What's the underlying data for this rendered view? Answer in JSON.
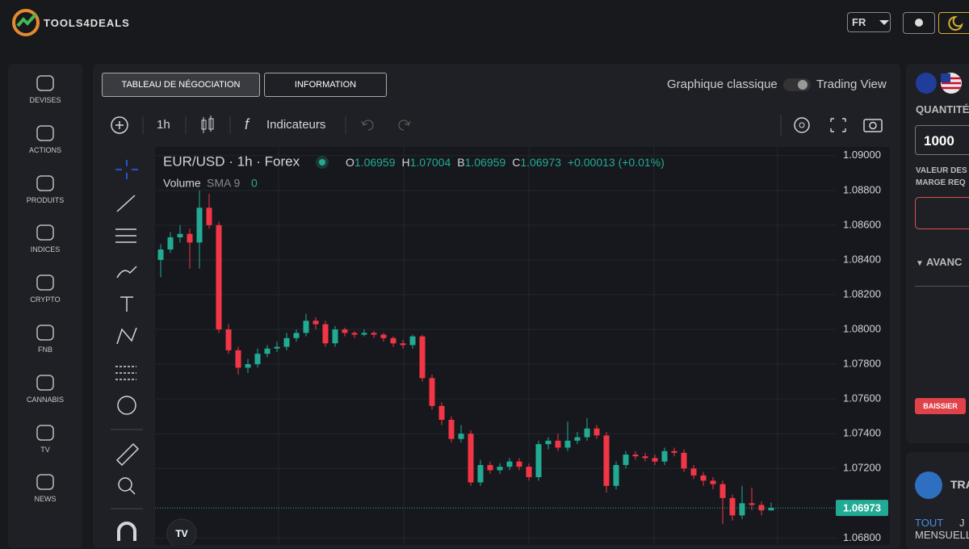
{
  "header": {
    "logo": "TOOLS4DEALS",
    "language": "FR"
  },
  "sidebar": [
    "DEVISES",
    "ACTIONS",
    "PRODUITS",
    "INDICES",
    "CRYPTO",
    "FNB",
    "CANNABIS",
    "TV",
    "NEWS"
  ],
  "tabs": [
    "TABLEAU DE NÉGOCIATION",
    "INFORMATION"
  ],
  "toggle": {
    "left": "Graphique classique",
    "right": "Trading View"
  },
  "toolbar": {
    "interval": "1h",
    "indicators": "Indicateurs"
  },
  "chart_data": {
    "type": "candlestick",
    "title": "EUR/USD · 1h · Forex",
    "legend": [
      {
        "key": "O",
        "value": 1.06959
      },
      {
        "key": "H",
        "value": 1.07004
      },
      {
        "key": "B",
        "value": 1.06959
      },
      {
        "key": "C",
        "value": 1.06973
      }
    ],
    "change": "+0.00013 (+0.01%)",
    "volume": {
      "name": "Volume",
      "indicator": "SMA 9",
      "value": 0
    },
    "up_color": "#22ab94",
    "down_color": "#f23645",
    "open": [
      1.084,
      1.0846,
      1.0853,
      1.0855,
      1.085,
      1.087,
      1.086,
      1.08,
      1.0788,
      1.0778,
      1.078,
      1.0786,
      1.0789,
      1.079,
      1.0795,
      1.0798,
      1.0805,
      1.0803,
      1.0792,
      1.08,
      1.0798,
      1.0797,
      1.0798,
      1.0797,
      1.0795,
      1.0792,
      1.0791,
      1.0796,
      1.0772,
      1.0756,
      1.0748,
      1.0737,
      1.074,
      1.0712,
      1.0722,
      1.0719,
      1.0721,
      1.0724,
      1.0721,
      1.0715,
      1.0734,
      1.0736,
      1.0732,
      1.0736,
      1.0738,
      1.0743,
      1.0739,
      1.071,
      1.0722,
      1.0728,
      1.0727,
      1.0726,
      1.0724,
      1.073,
      1.0729,
      1.072,
      1.0716,
      1.0713,
      1.0711,
      1.0703,
      1.0693,
      1.07,
      1.0699,
      1.06959
    ],
    "high": [
      1.0849,
      1.0856,
      1.086,
      1.0858,
      1.088,
      1.0878,
      1.0862,
      1.0803,
      1.079,
      1.0783,
      1.0789,
      1.0791,
      1.0793,
      1.0798,
      1.08,
      1.0809,
      1.0807,
      1.0805,
      1.0802,
      1.0801,
      1.0799,
      1.08,
      1.0799,
      1.0798,
      1.0796,
      1.0794,
      1.0797,
      1.0797,
      1.0774,
      1.0758,
      1.075,
      1.0745,
      1.0742,
      1.0725,
      1.0724,
      1.0723,
      1.0726,
      1.0726,
      1.0723,
      1.0736,
      1.0738,
      1.074,
      1.0747,
      1.0741,
      1.0749,
      1.0745,
      1.0741,
      1.0724,
      1.073,
      1.073,
      1.0729,
      1.0728,
      1.0732,
      1.0732,
      1.0731,
      1.0722,
      1.0718,
      1.0715,
      1.0713,
      1.0705,
      1.071,
      1.0709,
      1.0701,
      1.07004
    ],
    "low": [
      1.083,
      1.0844,
      1.085,
      1.0835,
      1.0835,
      1.0858,
      1.0798,
      1.0786,
      1.0774,
      1.0775,
      1.0778,
      1.0784,
      1.0787,
      1.0788,
      1.0793,
      1.0796,
      1.08,
      1.079,
      1.079,
      1.0796,
      1.0795,
      1.0796,
      1.0795,
      1.0793,
      1.079,
      1.0789,
      1.0789,
      1.077,
      1.0754,
      1.0745,
      1.0735,
      1.0735,
      1.071,
      1.071,
      1.0717,
      1.0717,
      1.0719,
      1.0719,
      1.0713,
      1.0713,
      1.0731,
      1.073,
      1.073,
      1.0734,
      1.0736,
      1.0737,
      1.0706,
      1.0708,
      1.072,
      1.0725,
      1.0724,
      1.0722,
      1.0722,
      1.0727,
      1.0718,
      1.0714,
      1.071,
      1.0708,
      1.0688,
      1.069,
      1.0691,
      1.0696,
      1.0693,
      1.06959
    ],
    "close": [
      1.0846,
      1.0853,
      1.0855,
      1.085,
      1.087,
      1.086,
      1.08,
      1.0788,
      1.0778,
      1.078,
      1.0786,
      1.0789,
      1.079,
      1.0795,
      1.0798,
      1.0805,
      1.0803,
      1.0792,
      1.08,
      1.0798,
      1.0797,
      1.0798,
      1.0797,
      1.0795,
      1.0792,
      1.0791,
      1.0796,
      1.0772,
      1.0756,
      1.0748,
      1.0737,
      1.074,
      1.0712,
      1.0722,
      1.0719,
      1.0721,
      1.0724,
      1.0721,
      1.0715,
      1.0734,
      1.0736,
      1.0732,
      1.0736,
      1.0738,
      1.0743,
      1.0739,
      1.071,
      1.0722,
      1.0728,
      1.0727,
      1.0726,
      1.0724,
      1.073,
      1.0729,
      1.072,
      1.0716,
      1.0713,
      1.0711,
      1.0703,
      1.0693,
      1.07,
      1.0699,
      1.06959,
      1.06973
    ],
    "ylim": [
      1.0676,
      1.0905
    ],
    "yticks": [
      {
        "value": 1.09,
        "label": "1.09000"
      },
      {
        "value": 1.088,
        "label": "1.08800"
      },
      {
        "value": 1.086,
        "label": "1.08600"
      },
      {
        "value": 1.084,
        "label": "1.08400"
      },
      {
        "value": 1.082,
        "label": "1.08200"
      },
      {
        "value": 1.08,
        "label": "1.08000"
      },
      {
        "value": 1.078,
        "label": "1.07800"
      },
      {
        "value": 1.076,
        "label": "1.07600"
      },
      {
        "value": 1.074,
        "label": "1.07400"
      },
      {
        "value": 1.072,
        "label": "1.07200"
      },
      {
        "value": 1.068,
        "label": "1.06800"
      }
    ],
    "last_price": 1.06973,
    "grid": true
  },
  "order_panel": {
    "quantity_label": "QUANTITÉ",
    "quantity": "1000",
    "value_label": "VALEUR DES",
    "margin_label": "MARGE REQ",
    "sell_button": "BAISSIER",
    "advanced": "AVANC"
  },
  "traders_panel": {
    "title": "TRA",
    "filters": [
      "TOUT",
      "J"
    ],
    "period": "MENSUELL"
  }
}
